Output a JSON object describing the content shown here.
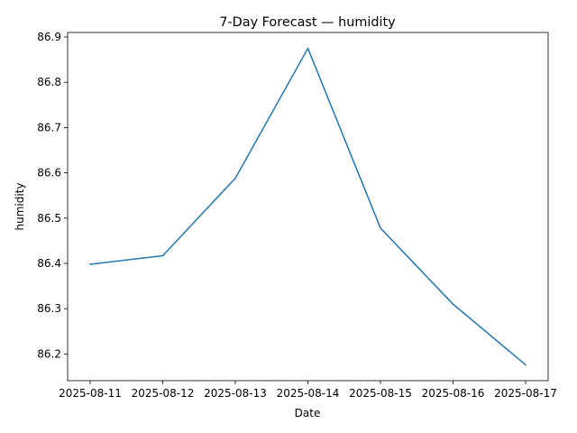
{
  "chart_data": {
    "type": "line",
    "title": "7-Day Forecast — humidity",
    "xlabel": "Date",
    "ylabel": "humidity",
    "x": [
      "2025-08-11",
      "2025-08-12",
      "2025-08-13",
      "2025-08-14",
      "2025-08-15",
      "2025-08-16",
      "2025-08-17"
    ],
    "series": [
      {
        "values": [
          86.398,
          86.417,
          86.588,
          86.875,
          86.478,
          86.31,
          86.176
        ],
        "color": "#1f77b4"
      }
    ],
    "yticks": [
      86.2,
      86.3,
      86.4,
      86.5,
      86.6,
      86.7,
      86.8,
      86.9
    ],
    "ylim": [
      86.141,
      86.91
    ],
    "grid": false,
    "legend": "none"
  }
}
